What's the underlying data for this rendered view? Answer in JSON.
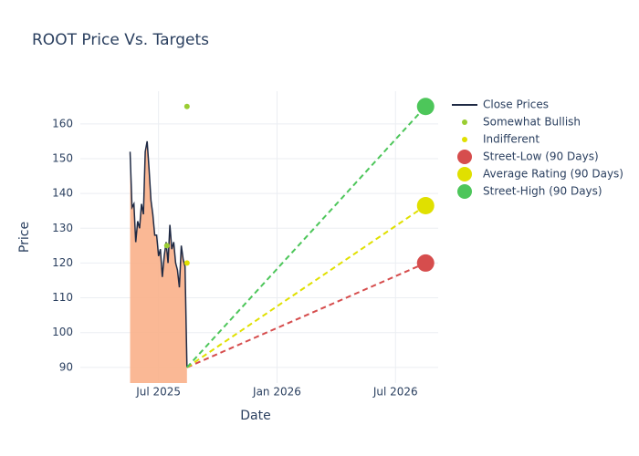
{
  "chart_data": {
    "type": "line",
    "title": "ROOT Price Vs. Targets",
    "x_label": "Date",
    "y_label": "Price",
    "xlim": [
      2025.17,
      2026.68
    ],
    "ylim": [
      85.5,
      169.4
    ],
    "xticks": [
      {
        "value": 2025.5,
        "label": "Jul 2025"
      },
      {
        "value": 2026.0,
        "label": "Jan 2026"
      },
      {
        "value": 2026.5,
        "label": "Jul 2026"
      }
    ],
    "yticks": [
      90,
      100,
      110,
      120,
      130,
      140,
      150,
      160
    ],
    "grid": true,
    "series": [
      {
        "name": "Close Prices",
        "kind": "area",
        "color": "#1f2a44",
        "fill": "#f9b08a",
        "x": [
          2025.38,
          2025.388,
          2025.396,
          2025.404,
          2025.412,
          2025.42,
          2025.428,
          2025.436,
          2025.444,
          2025.452,
          2025.46,
          2025.468,
          2025.476,
          2025.484,
          2025.492,
          2025.5,
          2025.508,
          2025.516,
          2025.524,
          2025.532,
          2025.54,
          2025.548,
          2025.556,
          2025.564,
          2025.572,
          2025.58,
          2025.588,
          2025.596,
          2025.604,
          2025.612,
          2025.62
        ],
        "values": [
          152,
          136,
          137,
          126,
          132,
          130,
          137,
          134,
          152,
          155,
          147,
          138,
          134,
          128,
          128,
          122,
          124,
          116,
          122,
          126,
          120,
          131,
          124,
          126,
          120,
          118,
          113,
          125,
          121,
          119,
          90
        ]
      },
      {
        "name": "Somewhat Bullish",
        "kind": "points",
        "color": "#9acd32",
        "x": [
          2025.62,
          2025.535
        ],
        "values": [
          165,
          125
        ]
      },
      {
        "name": "Indifferent",
        "kind": "points",
        "color": "#e0e000",
        "x": [
          2025.62
        ],
        "values": [
          120
        ]
      },
      {
        "name": "Street-Low (90 Days)",
        "kind": "target",
        "color": "#d64d4d",
        "x": [
          2025.62,
          2026.627
        ],
        "values": [
          90,
          120
        ]
      },
      {
        "name": "Average Rating (90 Days)",
        "kind": "target",
        "color": "#e0e000",
        "x": [
          2025.62,
          2026.627
        ],
        "values": [
          90,
          136.5
        ]
      },
      {
        "name": "Street-High (90 Days)",
        "kind": "target",
        "color": "#4dc65a",
        "x": [
          2025.62,
          2026.627
        ],
        "values": [
          90,
          165
        ]
      }
    ]
  }
}
